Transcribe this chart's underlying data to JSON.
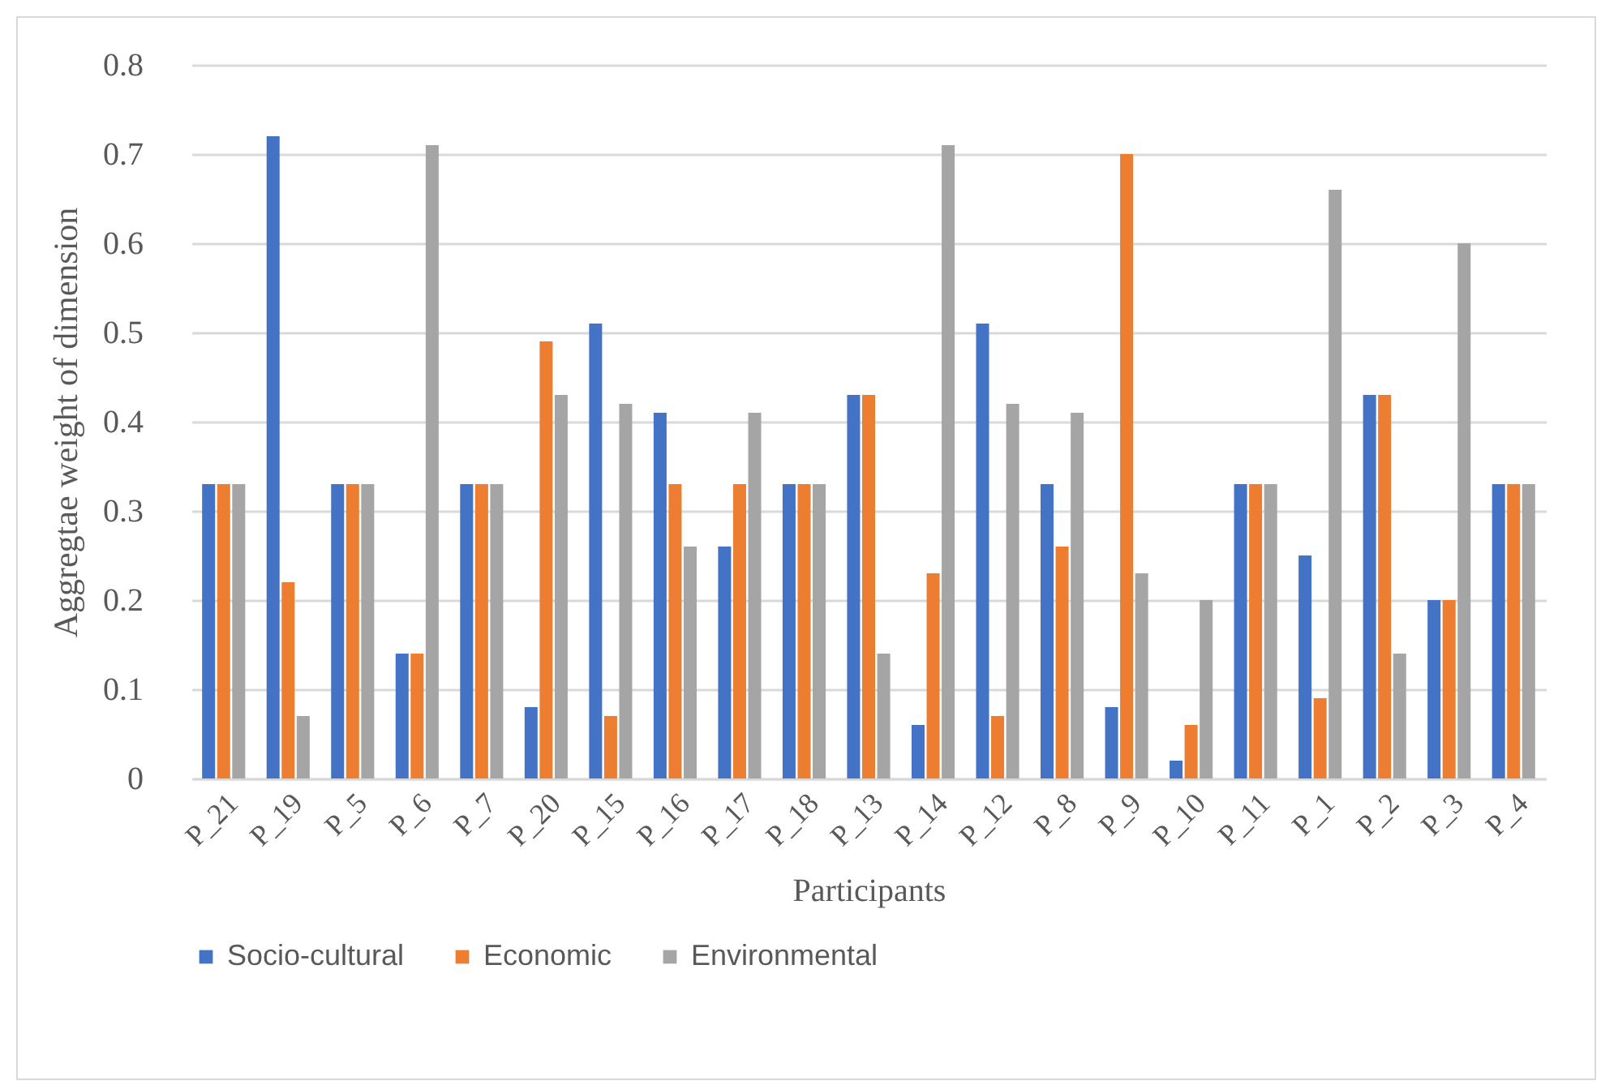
{
  "chart_data": {
    "type": "bar",
    "xlabel": "Participants",
    "ylabel": "Aggregtae weight of dimension",
    "categories": [
      "P_21",
      "P_19",
      "P_5",
      "P_6",
      "P_7",
      "P_20",
      "P_15",
      "P_16",
      "P_17",
      "P_18",
      "P_13",
      "P_14",
      "P_12",
      "P_8",
      "P_9",
      "P_10",
      "P_11",
      "P_1",
      "P_2",
      "P_3",
      "P_4"
    ],
    "series": [
      {
        "name": "Socio-cultural",
        "color": "#4472c4",
        "values": [
          0.33,
          0.72,
          0.33,
          0.14,
          0.33,
          0.08,
          0.51,
          0.41,
          0.26,
          0.33,
          0.43,
          0.06,
          0.51,
          0.33,
          0.08,
          0.02,
          0.33,
          0.25,
          0.43,
          0.2,
          0.33
        ]
      },
      {
        "name": "Economic",
        "color": "#ed7d31",
        "values": [
          0.33,
          0.22,
          0.33,
          0.14,
          0.33,
          0.49,
          0.07,
          0.33,
          0.33,
          0.33,
          0.43,
          0.23,
          0.07,
          0.26,
          0.7,
          0.06,
          0.33,
          0.09,
          0.43,
          0.2,
          0.33
        ]
      },
      {
        "name": "Environmental",
        "color": "#a5a5a5",
        "values": [
          0.33,
          0.07,
          0.33,
          0.71,
          0.33,
          0.43,
          0.42,
          0.26,
          0.41,
          0.33,
          0.14,
          0.71,
          0.42,
          0.41,
          0.23,
          0.2,
          0.33,
          0.66,
          0.14,
          0.6,
          0.33
        ]
      }
    ],
    "ylim": [
      0,
      0.8
    ],
    "yticks": [
      0,
      0.1,
      0.2,
      0.3,
      0.4,
      0.5,
      0.6,
      0.7,
      0.8
    ],
    "grid": "y",
    "legend": "bottom"
  }
}
